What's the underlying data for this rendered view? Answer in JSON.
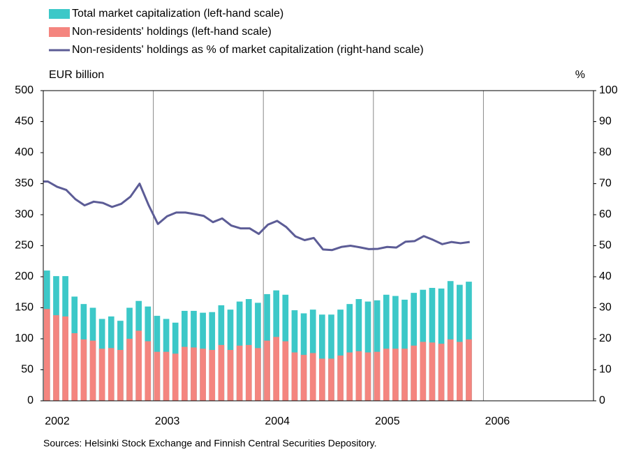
{
  "chart_data": {
    "type": "bar",
    "y_label": "EUR billion",
    "y2_label": "%",
    "source": "Sources: Helsinki Stock Exchange and Finnish Central Securities Depository.",
    "categories": [
      "2002",
      null,
      null,
      null,
      null,
      null,
      null,
      null,
      null,
      null,
      null,
      null,
      "2003",
      null,
      null,
      null,
      null,
      null,
      null,
      null,
      null,
      null,
      null,
      null,
      "2004",
      null,
      null,
      null,
      null,
      null,
      null,
      null,
      null,
      null,
      null,
      null,
      "2005",
      null,
      null,
      null,
      null,
      null,
      null,
      null,
      null,
      null,
      null,
      null,
      "2006",
      null,
      null,
      null,
      null,
      null,
      null,
      null,
      null,
      null,
      null,
      null
    ],
    "series": [
      {
        "name": "Total market capitalization (left-hand scale)",
        "type": "bar",
        "color": "#3cc8c8",
        "values": [
          210,
          201,
          201,
          168,
          156,
          150,
          132,
          136,
          129,
          150,
          161,
          152,
          137,
          132,
          126,
          145,
          145,
          142,
          143,
          154,
          147,
          160,
          164,
          158,
          172,
          178,
          171,
          146,
          141,
          147,
          139,
          139,
          147,
          156,
          164,
          160,
          162,
          171,
          169,
          163,
          174,
          179,
          182,
          181,
          193,
          187,
          192,
          null,
          null,
          null,
          null,
          null,
          null,
          null,
          null,
          null,
          null,
          null,
          null,
          null
        ]
      },
      {
        "name": "Non-residents' holdings (left-hand scale)",
        "type": "bar",
        "color": "#f4857f",
        "values": [
          148,
          138,
          136,
          109,
          99,
          97,
          84,
          85,
          82,
          100,
          113,
          96,
          79,
          79,
          76,
          87,
          86,
          84,
          82,
          90,
          82,
          89,
          90,
          85,
          97,
          103,
          96,
          78,
          74,
          77,
          68,
          68,
          73,
          78,
          80,
          78,
          79,
          84,
          84,
          84,
          89,
          95,
          94,
          92,
          99,
          95,
          99,
          null,
          null,
          null,
          null,
          null,
          null,
          null,
          null,
          null,
          null,
          null,
          null,
          null
        ]
      },
      {
        "name": "Non-residents' holdings as % of market capitalization (right-hand scale)",
        "type": "line",
        "axis": "y2",
        "color": "#5c5c96",
        "values": [
          70.7,
          69,
          68,
          65,
          63,
          64.2,
          63.8,
          62.5,
          63.5,
          65.8,
          70,
          63,
          57,
          59.5,
          60.7,
          60.7,
          60.2,
          59.6,
          57.6,
          58.8,
          56.5,
          55.6,
          55.6,
          53.8,
          56.8,
          58,
          56,
          53,
          51.8,
          52.5,
          48.8,
          48.6,
          49.6,
          50,
          49.5,
          48.9,
          49,
          49.6,
          49.4,
          51.3,
          51.5,
          53.1,
          51.9,
          50.5,
          51.2,
          50.8,
          51.2,
          null,
          null,
          null,
          null,
          null,
          null,
          null,
          null,
          null,
          null,
          null,
          null,
          null
        ]
      }
    ],
    "ylim": [
      0,
      500
    ],
    "yticks": [
      0,
      50,
      100,
      150,
      200,
      250,
      300,
      350,
      400,
      450,
      500
    ],
    "y2lim": [
      0,
      100
    ],
    "y2ticks": [
      0,
      10,
      20,
      30,
      40,
      50,
      60,
      70,
      80,
      90,
      100
    ]
  }
}
